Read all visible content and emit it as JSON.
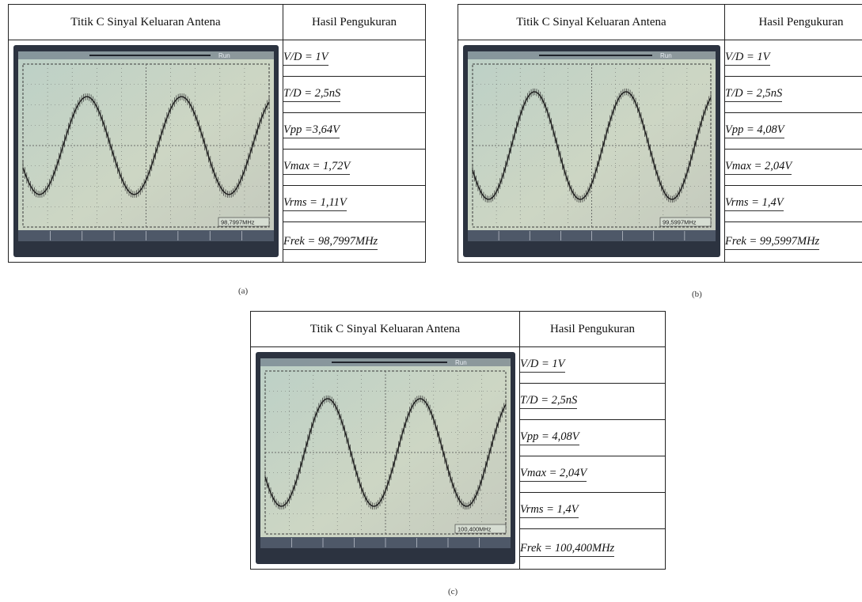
{
  "panels": [
    {
      "header_left": "Titik C Sinyal Keluaran Antena",
      "header_right": "Hasil Pengukuran",
      "measurements": [
        "V/D = 1V",
        "T/D = 2,5nS",
        "Vpp =3,64V",
        "Vmax = 1,72V",
        "Vrms = 1,11V",
        "Frek = 98,7997MHz"
      ],
      "scope_top_label": "Run",
      "scope_bottom_readout": "98,7997MHz",
      "caption": "(a)"
    },
    {
      "header_left": "Titik C Sinyal Keluaran Antena",
      "header_right": "Hasil Pengukuran",
      "measurements": [
        "V/D = 1V",
        "T/D = 2,5nS",
        "Vpp = 4,08V",
        "Vmax = 2,04V",
        "Vrms = 1,4V",
        "Frek = 99,5997MHz"
      ],
      "scope_top_label": "Run",
      "scope_bottom_readout": "99,5997MHz",
      "caption": "(b)"
    },
    {
      "header_left": "Titik C Sinyal Keluaran Antena",
      "header_right": "Hasil Pengukuran",
      "measurements": [
        "V/D = 1V",
        "T/D = 2,5nS",
        "Vpp = 4,08V",
        "Vmax = 2,04V",
        "Vrms = 1,4V",
        "Frek = 100,400MHz"
      ],
      "scope_top_label": "Run",
      "scope_bottom_readout": "100,400MHz",
      "caption": "(c)"
    }
  ]
}
